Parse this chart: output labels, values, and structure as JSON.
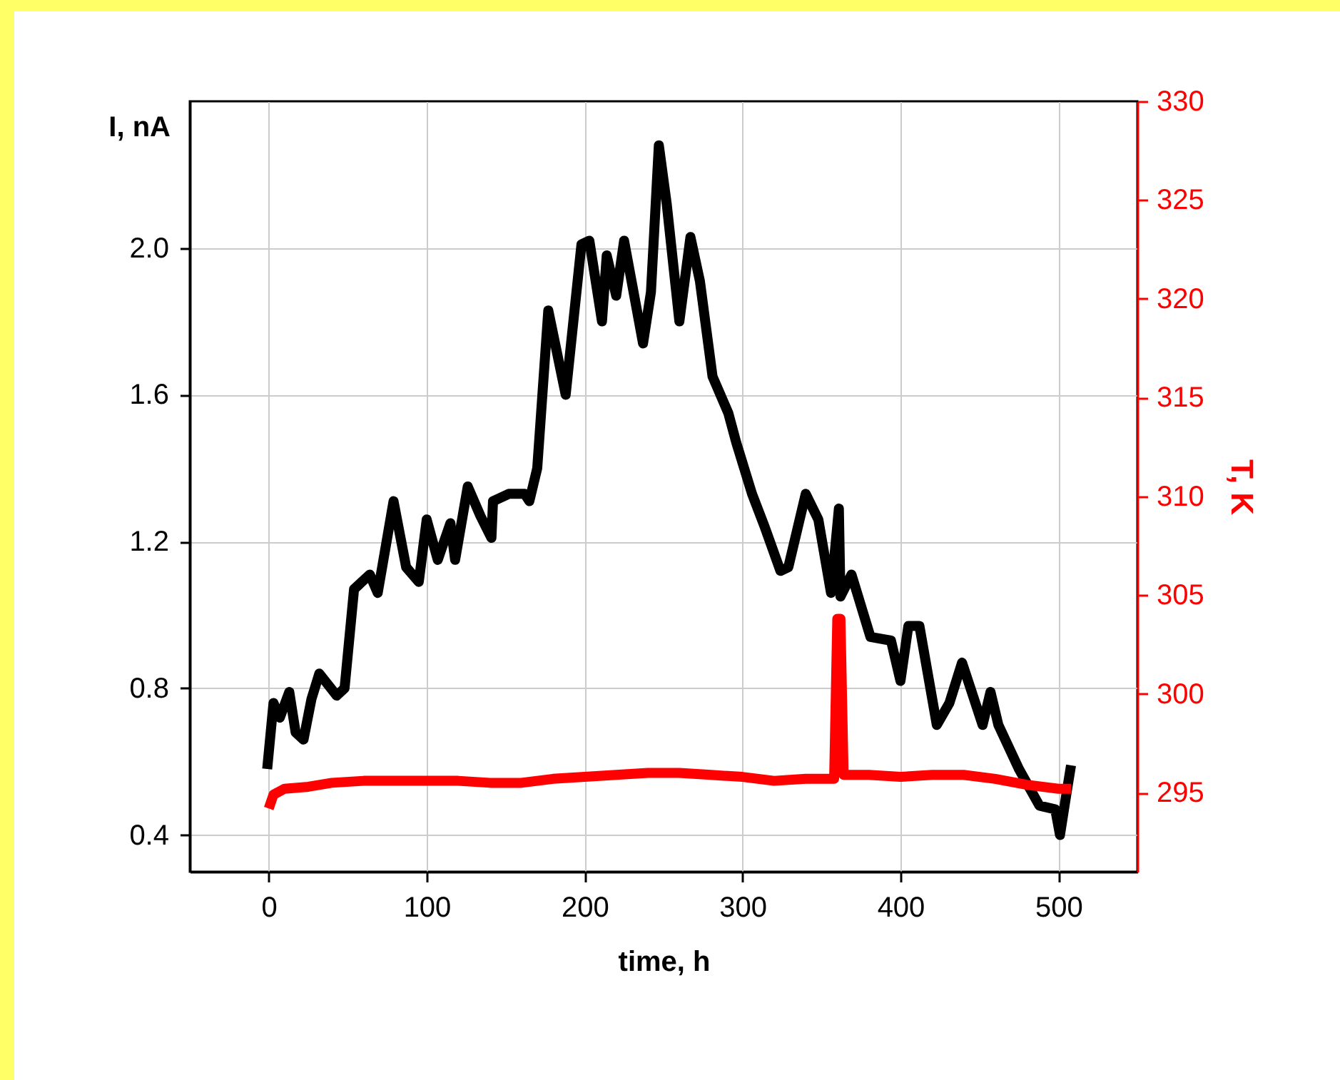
{
  "chart_data": {
    "type": "line",
    "xlabel": "time, h",
    "ylabel": "I, nA",
    "y2label": "T, K",
    "xlim": [
      -50,
      550
    ],
    "xticks": [
      0,
      100,
      200,
      300,
      400,
      500
    ],
    "ylim": [
      0.3,
      2.4
    ],
    "yticks": [
      {
        "value": 0.4,
        "label": "0.4"
      },
      {
        "value": 0.8,
        "label": "0.8"
      },
      {
        "value": 1.2,
        "label": "1.2"
      },
      {
        "value": 1.6,
        "label": "1.6"
      },
      {
        "value": 2,
        "label": "2.0"
      }
    ],
    "y2lim": [
      291,
      330
    ],
    "y2ticks": [
      295,
      300,
      305,
      310,
      315,
      320,
      325,
      330
    ],
    "grid": true,
    "line_style": "solid",
    "series": [
      {
        "color": "#000000",
        "x": [
          -1,
          3,
          7,
          13,
          17,
          22,
          27,
          32,
          43,
          48,
          54,
          64,
          69,
          79,
          87,
          95,
          100,
          107,
          115,
          118,
          126,
          134,
          141,
          142,
          152,
          162,
          165,
          170,
          177,
          188,
          198,
          203,
          211,
          214,
          220,
          225,
          237,
          242,
          247,
          252,
          260,
          267,
          273,
          281,
          291,
          296,
          306,
          314,
          324,
          329,
          340,
          348,
          356,
          361,
          362,
          369,
          381,
          394,
          400,
          405,
          412,
          423,
          431,
          439,
          452,
          457,
          462,
          475,
          488,
          498,
          501,
          505,
          508
        ],
        "values": [
          0.58,
          0.76,
          0.72,
          0.79,
          0.68,
          0.66,
          0.77,
          0.84,
          0.78,
          0.8,
          1.07,
          1.11,
          1.06,
          1.31,
          1.13,
          1.09,
          1.26,
          1.15,
          1.25,
          1.15,
          1.35,
          1.27,
          1.21,
          1.31,
          1.33,
          1.33,
          1.31,
          1.4,
          1.83,
          1.6,
          2.01,
          2.02,
          1.8,
          1.98,
          1.87,
          2.02,
          1.74,
          1.88,
          2.28,
          2.12,
          1.8,
          2.03,
          1.91,
          1.65,
          1.55,
          1.47,
          1.33,
          1.24,
          1.12,
          1.13,
          1.33,
          1.26,
          1.06,
          1.29,
          1.05,
          1.11,
          0.94,
          0.93,
          0.82,
          0.97,
          0.97,
          0.7,
          0.76,
          0.87,
          0.7,
          0.79,
          0.7,
          0.58,
          0.48,
          0.47,
          0.4,
          0.51,
          0.59
        ]
      },
      {
        "color": "#ff0000",
        "axis": "y2",
        "x": [
          0,
          3,
          10,
          25,
          40,
          60,
          80,
          100,
          120,
          140,
          160,
          180,
          200,
          220,
          240,
          260,
          280,
          300,
          320,
          340,
          358,
          360,
          362,
          364,
          380,
          400,
          420,
          440,
          460,
          480,
          500,
          508
        ],
        "values": [
          294.2,
          294.9,
          295.2,
          295.3,
          295.5,
          295.6,
          295.6,
          295.6,
          295.6,
          295.5,
          295.5,
          295.7,
          295.8,
          295.9,
          296,
          296,
          295.9,
          295.8,
          295.6,
          295.7,
          295.7,
          303.8,
          303.8,
          295.9,
          295.9,
          295.8,
          295.9,
          295.9,
          295.7,
          295.4,
          295.2,
          295.2
        ]
      }
    ]
  }
}
